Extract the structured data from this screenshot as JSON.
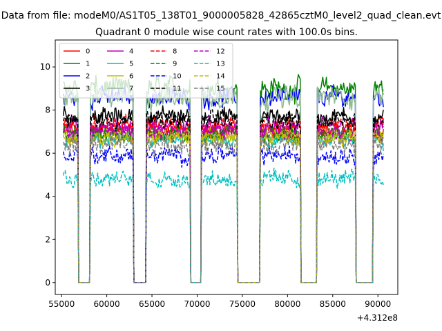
{
  "chart_data": {
    "type": "line",
    "suptitle": "Data from file: modeM0/AS1T05_138T01_9000005828_42865cztM0_level2_quad_clean.evt",
    "title": "Quadrant 0 module wise count rates with 100.0s bins.",
    "xlabel": "",
    "ylabel": "",
    "x_offset_label": "+4.312e8",
    "xlim": [
      54300,
      92200
    ],
    "ylim": [
      -0.55,
      11.25
    ],
    "xticks": [
      55000,
      60000,
      65000,
      70000,
      75000,
      80000,
      85000,
      90000
    ],
    "xtick_labels": [
      "55000",
      "60000",
      "65000",
      "70000",
      "75000",
      "80000",
      "85000",
      "90000"
    ],
    "yticks": [
      0,
      2,
      4,
      6,
      8,
      10
    ],
    "ytick_labels": [
      "0",
      "2",
      "4",
      "6",
      "8",
      "10"
    ],
    "legend_location": "upper-left",
    "time_range": [
      55200,
      90600
    ],
    "active_intervals": [
      [
        55200,
        56800
      ],
      [
        58200,
        62900
      ],
      [
        64400,
        69200
      ],
      [
        70500,
        74400
      ],
      [
        77000,
        81400
      ],
      [
        83300,
        87500
      ],
      [
        89500,
        90600
      ]
    ],
    "gap_level": 0,
    "series": [
      {
        "name": "0",
        "color": "#ff0000",
        "style": "solid",
        "mean_rate": 7.0,
        "noise": 0.35
      },
      {
        "name": "1",
        "color": "#008000",
        "style": "solid",
        "mean_rate": 9.0,
        "noise": 0.45
      },
      {
        "name": "2",
        "color": "#0000ff",
        "style": "solid",
        "mean_rate": 8.6,
        "noise": 0.4
      },
      {
        "name": "3",
        "color": "#000000",
        "style": "solid",
        "mean_rate": 7.7,
        "noise": 0.35
      },
      {
        "name": "4",
        "color": "#bf00bf",
        "style": "solid",
        "mean_rate": 7.2,
        "noise": 0.35
      },
      {
        "name": "5",
        "color": "#00bfbf",
        "style": "solid",
        "mean_rate": 6.6,
        "noise": 0.3
      },
      {
        "name": "6",
        "color": "#bfbf00",
        "style": "solid",
        "mean_rate": 6.8,
        "noise": 0.35
      },
      {
        "name": "7",
        "color": "#8fbc8f",
        "style": "solid",
        "mean_rate": 8.6,
        "noise": 0.45
      },
      {
        "name": "8",
        "color": "#ff0000",
        "style": "dashed",
        "mean_rate": 7.3,
        "noise": 0.35
      },
      {
        "name": "9",
        "color": "#008000",
        "style": "dashed",
        "mean_rate": 6.9,
        "noise": 0.35
      },
      {
        "name": "10",
        "color": "#0000ff",
        "style": "dashed",
        "mean_rate": 5.9,
        "noise": 0.35
      },
      {
        "name": "11",
        "color": "#000000",
        "style": "dashed",
        "mean_rate": 7.5,
        "noise": 0.35
      },
      {
        "name": "12",
        "color": "#bf00bf",
        "style": "dashed",
        "mean_rate": 7.0,
        "noise": 0.35
      },
      {
        "name": "13",
        "color": "#00bfbf",
        "style": "dashed",
        "mean_rate": 4.8,
        "noise": 0.35
      },
      {
        "name": "14",
        "color": "#bfbf00",
        "style": "dashed",
        "mean_rate": 6.7,
        "noise": 0.35
      },
      {
        "name": "15",
        "color": "#808080",
        "style": "dashed",
        "mean_rate": 6.4,
        "noise": 0.4
      }
    ]
  }
}
